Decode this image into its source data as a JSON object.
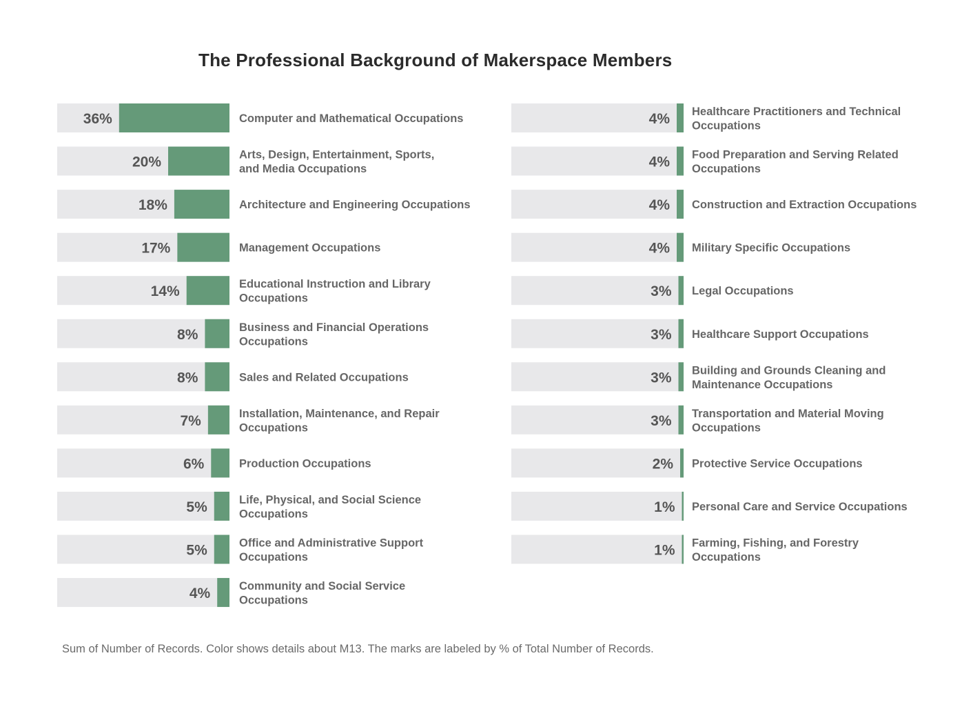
{
  "chart_data": {
    "type": "bar",
    "title": "The Professional Background of Makerspace Members",
    "value_format": "percent",
    "bar_color": "#659a79",
    "track_color": "#e8e8ea",
    "panels": [
      {
        "categories": [
          [
            "Computer and Mathematical Occupations"
          ],
          [
            "Arts, Design, Entertainment, Sports,",
            "and Media Occupations"
          ],
          [
            "Architecture and Engineering Occupations"
          ],
          [
            "Management Occupations"
          ],
          [
            "Educational Instruction and Library",
            "Occupations"
          ],
          [
            "Business and Financial Operations",
            "Occupations"
          ],
          [
            "Sales and Related Occupations"
          ],
          [
            "Installation, Maintenance, and Repair",
            "Occupations"
          ],
          [
            "Production Occupations"
          ],
          [
            "Life, Physical, and Social Science",
            "Occupations"
          ],
          [
            "Office and Administrative Support",
            "Occupations"
          ],
          [
            "Community and Social Service",
            "Occupations"
          ]
        ],
        "values": [
          36,
          20,
          18,
          17,
          14,
          8,
          8,
          7,
          6,
          5,
          5,
          4
        ],
        "labels": [
          "36%",
          "20%",
          "18%",
          "17%",
          "14%",
          "8%",
          "8%",
          "7%",
          "6%",
          "5%",
          "5%",
          "4%"
        ]
      },
      {
        "categories": [
          [
            "Healthcare Practitioners and Technical",
            "Occupations"
          ],
          [
            "Food Preparation and Serving Related",
            "Occupations"
          ],
          [
            "Construction and Extraction Occupations"
          ],
          [
            "Military Specific Occupations"
          ],
          [
            "Legal Occupations"
          ],
          [
            "Healthcare Support Occupations"
          ],
          [
            "Building and Grounds Cleaning and",
            "Maintenance Occupations"
          ],
          [
            "Transportation and Material Moving",
            "Occupations"
          ],
          [
            "Protective Service Occupations"
          ],
          [
            "Personal Care and Service Occupations"
          ],
          [
            "Farming, Fishing, and Forestry",
            "Occupations"
          ]
        ],
        "values": [
          4,
          4,
          4,
          4,
          3,
          3,
          3,
          3,
          2,
          1,
          1
        ],
        "labels": [
          "4%",
          "4%",
          "4%",
          "4%",
          "3%",
          "3%",
          "3%",
          "3%",
          "2%",
          "1%",
          "1%"
        ]
      }
    ]
  },
  "footnote": "Sum of Number of Records. Color shows details about M13. The marks are labeled by % of Total Number of Records."
}
